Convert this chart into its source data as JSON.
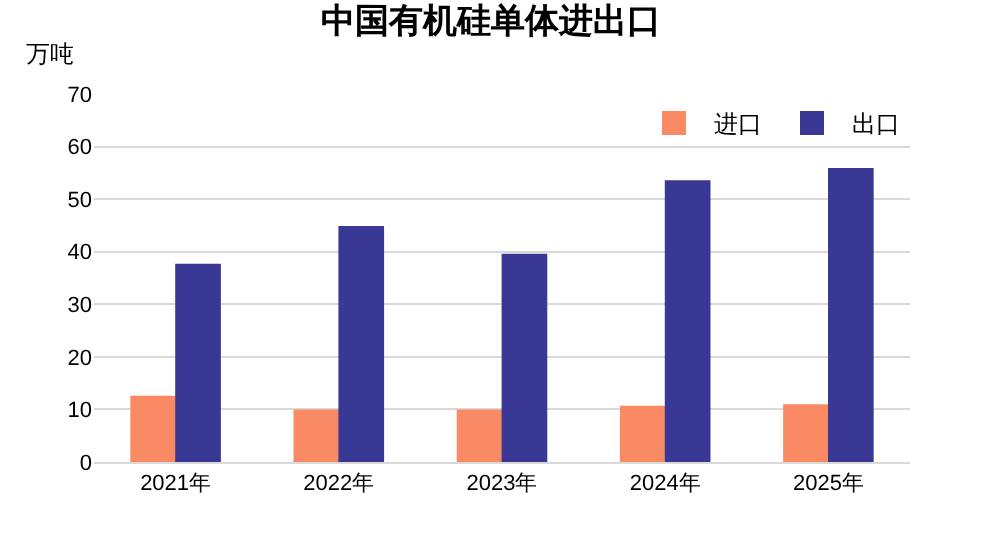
{
  "chart_data": {
    "type": "bar",
    "title": "中国有机硅单体进出口",
    "ylabel": "万吨",
    "categories": [
      "2021年",
      "2022年",
      "2023年",
      "2024年",
      "2025年"
    ],
    "series": [
      {
        "name": "进口",
        "color": "#f98a64",
        "values": [
          12.6,
          10,
          10,
          10.7,
          11
        ]
      },
      {
        "name": "出口",
        "color": "#393895",
        "values": [
          37.7,
          44.9,
          39.6,
          53.6,
          55.9
        ]
      }
    ],
    "ylim": [
      0,
      70
    ],
    "yticks": [
      0,
      10,
      20,
      30,
      40,
      50,
      60,
      70
    ],
    "grid": "y",
    "legend": "top right"
  }
}
